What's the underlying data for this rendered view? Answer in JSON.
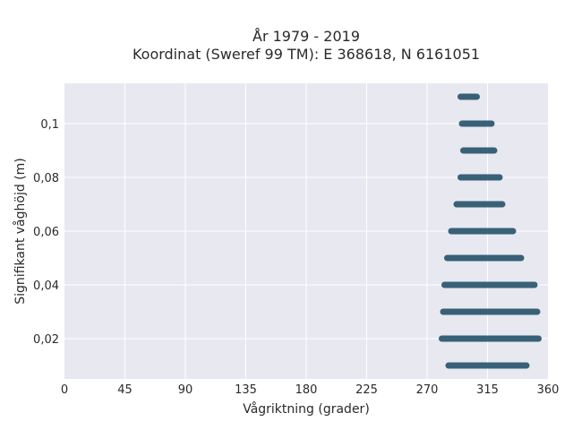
{
  "chart_data": {
    "type": "scatter",
    "title_line1": "År 1979 - 2019",
    "title_line2": "Koordinat (Sweref 99 TM): E 368618, N 6161051",
    "xlabel": "Vågriktning (grader)",
    "ylabel": "Signifikant våghöjd (m)",
    "xlim": [
      0,
      360
    ],
    "ylim": [
      0.005,
      0.115
    ],
    "xticks": [
      0,
      45,
      90,
      135,
      180,
      225,
      270,
      315,
      360
    ],
    "xtick_labels": [
      "0",
      "45",
      "90",
      "135",
      "180",
      "225",
      "270",
      "315",
      "360"
    ],
    "yticks": [
      0.02,
      0.04,
      0.06,
      0.08,
      0.1
    ],
    "ytick_labels": [
      "0,02",
      "0,04",
      "0,06",
      "0,08",
      "0,1"
    ],
    "grid": true,
    "background": "#e8e8f0",
    "marker_color": "#2e5a70",
    "bands": [
      {
        "y": 0.01,
        "x_min": 286,
        "x_max": 344
      },
      {
        "y": 0.02,
        "x_min": 281,
        "x_max": 353
      },
      {
        "y": 0.03,
        "x_min": 282,
        "x_max": 352
      },
      {
        "y": 0.04,
        "x_min": 283,
        "x_max": 350
      },
      {
        "y": 0.05,
        "x_min": 285,
        "x_max": 340
      },
      {
        "y": 0.06,
        "x_min": 288,
        "x_max": 334
      },
      {
        "y": 0.07,
        "x_min": 292,
        "x_max": 326
      },
      {
        "y": 0.08,
        "x_min": 295,
        "x_max": 324
      },
      {
        "y": 0.09,
        "x_min": 297,
        "x_max": 320
      },
      {
        "y": 0.1,
        "x_min": 296,
        "x_max": 318
      },
      {
        "y": 0.11,
        "x_min": 295,
        "x_max": 307
      }
    ]
  }
}
